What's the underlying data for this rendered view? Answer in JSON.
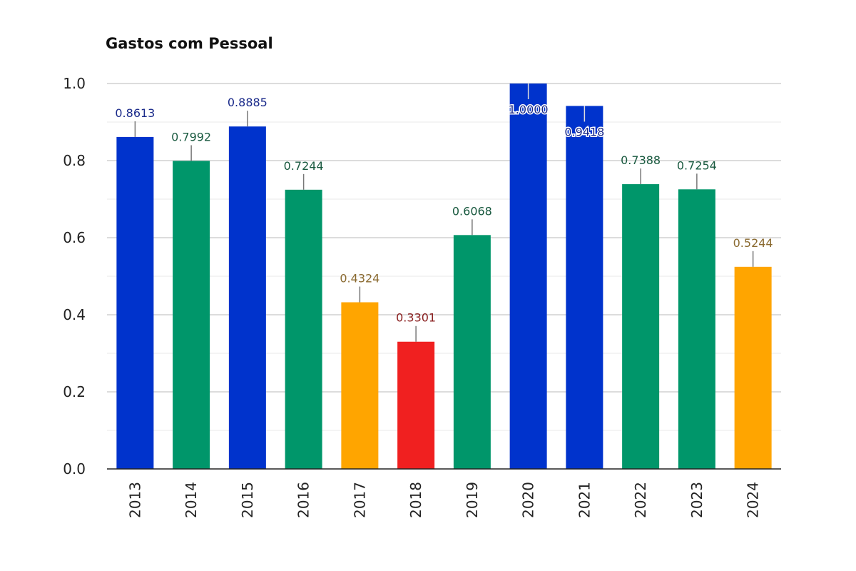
{
  "chart_data": {
    "type": "bar",
    "title": "Gastos com Pessoal",
    "xlabel": "",
    "ylabel": "",
    "ylim": [
      0,
      1.0
    ],
    "yticks": [
      "0.0",
      "0.2",
      "0.4",
      "0.6",
      "0.8",
      "1.0"
    ],
    "grid": true,
    "categories": [
      "2013",
      "2014",
      "2015",
      "2016",
      "2017",
      "2018",
      "2019",
      "2020",
      "2021",
      "2022",
      "2023",
      "2024"
    ],
    "values": [
      0.8613,
      0.7992,
      0.8885,
      0.7244,
      0.4324,
      0.3301,
      0.6068,
      1.0,
      0.9418,
      0.7388,
      0.7254,
      0.5244
    ],
    "labels": [
      "0.8613",
      "0.7992",
      "0.8885",
      "0.7244",
      "0.4324",
      "0.3301",
      "0.6068",
      "1.0000",
      "0.9418",
      "0.7388",
      "0.7254",
      "0.5244"
    ],
    "bar_colors": [
      "#0033cc",
      "#00966a",
      "#0033cc",
      "#00966a",
      "#ffa500",
      "#f02020",
      "#00966a",
      "#0033cc",
      "#0033cc",
      "#00966a",
      "#00966a",
      "#ffa500"
    ],
    "label_colors": [
      "#1a2a8a",
      "#1a5a40",
      "#1a2a8a",
      "#1a5a40",
      "#8a6a30",
      "#8a2020",
      "#1a5a40",
      "#1a2a8a",
      "#1a2a8a",
      "#1a5a40",
      "#1a5a40",
      "#8a6a30"
    ]
  }
}
